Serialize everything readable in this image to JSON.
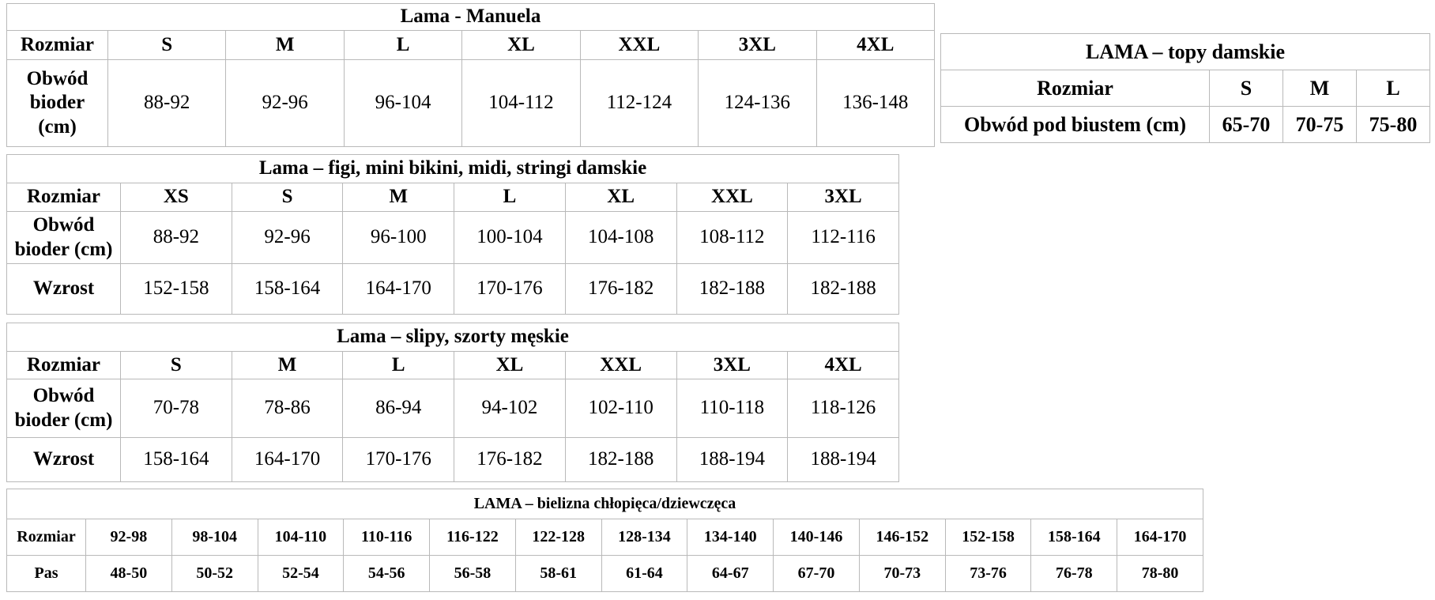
{
  "colors": {
    "background": "#ffffff",
    "text": "#000000",
    "table_border": "#b9b9b9"
  },
  "tables": {
    "manuela": {
      "title": "Lama - Manuela",
      "corner": "Rozmiar",
      "sizes": [
        "S",
        "M",
        "L",
        "XL",
        "XXL",
        "3XL",
        "4XL"
      ],
      "rows": [
        {
          "label": "Obwód bioder (cm)",
          "values": [
            "88-92",
            "92-96",
            "96-104",
            "104-112",
            "112-124",
            "124-136",
            "136-148"
          ]
        }
      ]
    },
    "topy": {
      "title": "LAMA – topy damskie",
      "corner": "Rozmiar",
      "sizes": [
        "S",
        "M",
        "L"
      ],
      "rows": [
        {
          "label": "Obwód pod biustem (cm)",
          "values": [
            "65-70",
            "70-75",
            "75-80"
          ]
        }
      ]
    },
    "figi": {
      "title": "Lama – figi, mini bikini, midi, stringi damskie",
      "corner": "Rozmiar",
      "sizes": [
        "XS",
        "S",
        "M",
        "L",
        "XL",
        "XXL",
        "3XL"
      ],
      "rows": [
        {
          "label": "Obwód bioder (cm)",
          "values": [
            "88-92",
            "92-96",
            "96-100",
            "100-104",
            "104-108",
            "108-112",
            "112-116"
          ]
        },
        {
          "label": "Wzrost",
          "values": [
            "152-158",
            "158-164",
            "164-170",
            "170-176",
            "176-182",
            "182-188",
            "182-188"
          ]
        }
      ]
    },
    "meskie": {
      "title": "Lama – slipy, szorty męskie",
      "corner": "Rozmiar",
      "sizes": [
        "S",
        "M",
        "L",
        "XL",
        "XXL",
        "3XL",
        "4XL"
      ],
      "rows": [
        {
          "label": "Obwód bioder (cm)",
          "values": [
            "70-78",
            "78-86",
            "86-94",
            "94-102",
            "102-110",
            "110-118",
            "118-126"
          ]
        },
        {
          "label": "Wzrost",
          "values": [
            "158-164",
            "164-170",
            "170-176",
            "176-182",
            "182-188",
            "188-194",
            "188-194"
          ]
        }
      ]
    },
    "dziecieca": {
      "title": "LAMA – bielizna chłopięca/dziewczęca",
      "rows": [
        {
          "label": "Rozmiar",
          "values": [
            "92-98",
            "98-104",
            "104-110",
            "110-116",
            "116-122",
            "122-128",
            "128-134",
            "134-140",
            "140-146",
            "146-152",
            "152-158",
            "158-164",
            "164-170"
          ]
        },
        {
          "label": "Pas",
          "values": [
            "48-50",
            "50-52",
            "52-54",
            "54-56",
            "56-58",
            "58-61",
            "61-64",
            "64-67",
            "67-70",
            "70-73",
            "73-76",
            "76-78",
            "78-80"
          ]
        }
      ]
    }
  }
}
